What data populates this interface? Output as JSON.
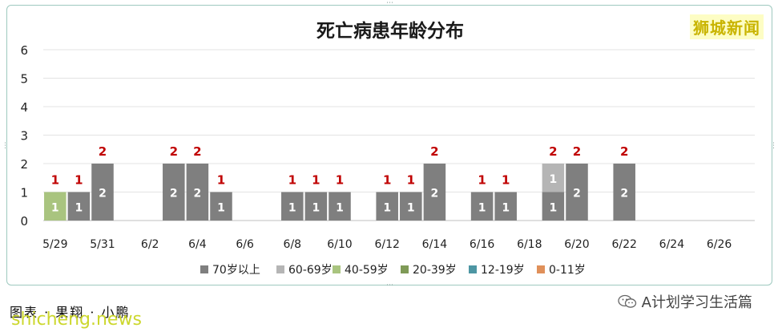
{
  "watermark": "狮城新闻",
  "footer": {
    "caption": "图表 · 果翔 · 小鹏",
    "site": "shicheng.news",
    "account": "A计划学习生活篇",
    "account_icon": "wechat-icon"
  },
  "chart_data": {
    "type": "bar",
    "stacked": true,
    "title": "死亡病患年龄分布",
    "xlabel": "",
    "ylabel": "",
    "ylim": [
      0,
      6
    ],
    "yticks": [
      0,
      1,
      2,
      3,
      4,
      5,
      6
    ],
    "grid": true,
    "legend_position": "bottom",
    "categories": [
      "5/29",
      "5/30",
      "5/31",
      "6/1",
      "6/2",
      "6/3",
      "6/4",
      "6/5",
      "6/6",
      "6/7",
      "6/8",
      "6/9",
      "6/10",
      "6/11",
      "6/12",
      "6/13",
      "6/14",
      "6/15",
      "6/16",
      "6/17",
      "6/18",
      "6/19",
      "6/20",
      "6/21",
      "6/22",
      "6/23",
      "6/24",
      "6/25",
      "6/26",
      "6/27"
    ],
    "x_tick_labels": [
      "5/29",
      "5/31",
      "6/2",
      "6/4",
      "6/6",
      "6/8",
      "6/10",
      "6/12",
      "6/14",
      "6/16",
      "6/18",
      "6/20",
      "6/22",
      "6/24",
      "6/26"
    ],
    "series": [
      {
        "name": "70岁以上",
        "color": "#7f7f7f",
        "values": [
          0,
          1,
          2,
          0,
          0,
          2,
          2,
          1,
          0,
          0,
          1,
          1,
          1,
          0,
          1,
          1,
          2,
          0,
          1,
          1,
          0,
          1,
          2,
          0,
          2,
          0,
          0,
          0,
          0,
          0
        ]
      },
      {
        "name": "60-69岁",
        "color": "#b5b5b5",
        "values": [
          0,
          0,
          0,
          0,
          0,
          0,
          0,
          0,
          0,
          0,
          0,
          0,
          0,
          0,
          0,
          0,
          0,
          0,
          0,
          0,
          0,
          1,
          0,
          0,
          0,
          0,
          0,
          0,
          0,
          0
        ]
      },
      {
        "name": "40-59岁",
        "color": "#a9c47f",
        "values": [
          1,
          0,
          0,
          0,
          0,
          0,
          0,
          0,
          0,
          0,
          0,
          0,
          0,
          0,
          0,
          0,
          0,
          0,
          0,
          0,
          0,
          0,
          0,
          0,
          0,
          0,
          0,
          0,
          0,
          0
        ]
      },
      {
        "name": "20-39岁",
        "color": "#7f9a57",
        "values": [
          0,
          0,
          0,
          0,
          0,
          0,
          0,
          0,
          0,
          0,
          0,
          0,
          0,
          0,
          0,
          0,
          0,
          0,
          0,
          0,
          0,
          0,
          0,
          0,
          0,
          0,
          0,
          0,
          0,
          0
        ]
      },
      {
        "name": "12-19岁",
        "color": "#4d96a3",
        "values": [
          0,
          0,
          0,
          0,
          0,
          0,
          0,
          0,
          0,
          0,
          0,
          0,
          0,
          0,
          0,
          0,
          0,
          0,
          0,
          0,
          0,
          0,
          0,
          0,
          0,
          0,
          0,
          0,
          0,
          0
        ]
      },
      {
        "name": "0-11岁",
        "color": "#e0905a",
        "values": [
          0,
          0,
          0,
          0,
          0,
          0,
          0,
          0,
          0,
          0,
          0,
          0,
          0,
          0,
          0,
          0,
          0,
          0,
          0,
          0,
          0,
          0,
          0,
          0,
          0,
          0,
          0,
          0,
          0,
          0
        ]
      }
    ],
    "total_label_color": "#c00000",
    "segment_label_color": "#ffffff"
  }
}
